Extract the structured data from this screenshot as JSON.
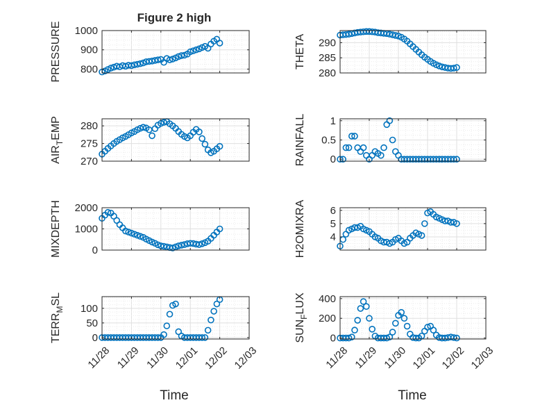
{
  "figure": {
    "title": "Figure 2 high",
    "marker_color": "#0072bd",
    "x_axis_label": "Time",
    "x_tick_labels": [
      "11/28",
      "11/29",
      "11/30",
      "12/01",
      "12/02",
      "12/03"
    ]
  },
  "chart_data": [
    {
      "type": "scatter",
      "name": "pressure",
      "ylabel": "PRESSURE",
      "ylim": [
        780,
        1000
      ],
      "yticks": [
        800,
        900,
        1000
      ],
      "x": [
        0.0,
        0.1,
        0.2,
        0.3,
        0.4,
        0.5,
        0.6,
        0.7,
        0.8,
        0.9,
        1.0,
        1.1,
        1.2,
        1.3,
        1.4,
        1.5,
        1.6,
        1.7,
        1.8,
        1.9,
        2.0,
        2.1,
        2.2,
        2.3,
        2.4,
        2.5,
        2.6,
        2.7,
        2.8,
        2.9,
        3.0,
        3.1,
        3.2,
        3.3,
        3.4,
        3.5,
        3.6,
        3.7,
        3.8,
        3.9,
        4.0
      ],
      "y": [
        785,
        790,
        798,
        805,
        810,
        815,
        812,
        818,
        815,
        820,
        818,
        822,
        825,
        828,
        832,
        838,
        840,
        842,
        845,
        848,
        850,
        835,
        855,
        848,
        852,
        858,
        865,
        870,
        872,
        878,
        890,
        895,
        900,
        905,
        912,
        918,
        908,
        930,
        945,
        955,
        935
      ],
      "grid": true,
      "legend": "none"
    },
    {
      "type": "scatter",
      "name": "theta",
      "ylabel": "THETA",
      "ylim": [
        280,
        294
      ],
      "yticks": [
        280,
        285,
        290
      ],
      "x": [
        0.0,
        0.1,
        0.2,
        0.3,
        0.4,
        0.5,
        0.6,
        0.7,
        0.8,
        0.9,
        1.0,
        1.1,
        1.2,
        1.3,
        1.4,
        1.5,
        1.6,
        1.7,
        1.8,
        1.9,
        2.0,
        2.1,
        2.2,
        2.3,
        2.4,
        2.5,
        2.6,
        2.7,
        2.8,
        2.9,
        3.0,
        3.1,
        3.2,
        3.3,
        3.4,
        3.5,
        3.6,
        3.7,
        3.8,
        3.9,
        4.0
      ],
      "y": [
        292.5,
        292.6,
        292.7,
        292.8,
        293,
        293.2,
        293.4,
        293.5,
        293.6,
        293.7,
        293.7,
        293.6,
        293.5,
        293.3,
        293.2,
        293.1,
        293,
        292.8,
        292.6,
        292.4,
        292.2,
        291.8,
        291.2,
        290.5,
        289.6,
        288.7,
        287.8,
        286.9,
        286,
        285.2,
        284.5,
        283.8,
        283.2,
        282.7,
        282.3,
        282,
        281.8,
        281.6,
        281.5,
        281.6,
        281.8
      ],
      "grid": true,
      "legend": "none"
    },
    {
      "type": "scatter",
      "name": "air_temp",
      "ylabel": "AIR_TEMP",
      "ylim": [
        270,
        282
      ],
      "yticks": [
        270,
        275,
        280
      ],
      "x": [
        0.0,
        0.1,
        0.2,
        0.3,
        0.4,
        0.5,
        0.6,
        0.7,
        0.8,
        0.9,
        1.0,
        1.1,
        1.2,
        1.3,
        1.4,
        1.5,
        1.6,
        1.7,
        1.8,
        1.9,
        2.0,
        2.1,
        2.2,
        2.3,
        2.4,
        2.5,
        2.6,
        2.7,
        2.8,
        2.9,
        3.0,
        3.1,
        3.2,
        3.3,
        3.4,
        3.5,
        3.6,
        3.7,
        3.8,
        3.9,
        4.0
      ],
      "y": [
        272,
        272.8,
        273.6,
        274.3,
        275,
        275.6,
        276.1,
        276.6,
        277,
        277.5,
        278,
        278.4,
        278.9,
        279.3,
        279.6,
        279.4,
        278.9,
        277.2,
        279.2,
        280.2,
        280.7,
        281,
        281.2,
        280.6,
        280,
        279.3,
        278.4,
        277.6,
        277,
        276.6,
        277.2,
        278.2,
        279,
        278.3,
        276.4,
        274.8,
        273.2,
        272.4,
        272.8,
        273.5,
        274.2
      ],
      "grid": true,
      "legend": "none"
    },
    {
      "type": "scatter",
      "name": "rainfall",
      "ylabel": "RAINFALL",
      "ylim": [
        -0.05,
        1.05
      ],
      "yticks": [
        0,
        0.5,
        1
      ],
      "x": [
        0.0,
        0.1,
        0.2,
        0.3,
        0.4,
        0.5,
        0.6,
        0.7,
        0.8,
        0.9,
        1.0,
        1.1,
        1.2,
        1.3,
        1.4,
        1.5,
        1.6,
        1.7,
        1.8,
        1.9,
        2.0,
        2.1,
        2.2,
        2.3,
        2.4,
        2.5,
        2.6,
        2.7,
        2.8,
        2.9,
        3.0,
        3.1,
        3.2,
        3.3,
        3.4,
        3.5,
        3.6,
        3.7,
        3.8,
        3.9,
        4.0
      ],
      "y": [
        0,
        0,
        0.3,
        0.3,
        0.6,
        0.6,
        0.3,
        0.2,
        0.3,
        0.1,
        0,
        0.1,
        0.2,
        0.15,
        0.1,
        0.3,
        0.9,
        1.0,
        0.5,
        0.2,
        0.1,
        0,
        0,
        0,
        0,
        0,
        0,
        0,
        0,
        0,
        0,
        0,
        0,
        0,
        0,
        0,
        0,
        0,
        0,
        0,
        0
      ],
      "grid": true,
      "legend": "none"
    },
    {
      "type": "scatter",
      "name": "mixdepth",
      "ylabel": "MIXDEPTH",
      "ylim": [
        0,
        2000
      ],
      "yticks": [
        0,
        1000,
        2000
      ],
      "x": [
        0.0,
        0.1,
        0.2,
        0.3,
        0.4,
        0.5,
        0.6,
        0.7,
        0.8,
        0.9,
        1.0,
        1.1,
        1.2,
        1.3,
        1.4,
        1.5,
        1.6,
        1.7,
        1.8,
        1.9,
        2.0,
        2.1,
        2.2,
        2.3,
        2.4,
        2.5,
        2.6,
        2.7,
        2.8,
        2.9,
        3.0,
        3.1,
        3.2,
        3.3,
        3.4,
        3.5,
        3.6,
        3.7,
        3.8,
        3.9,
        4.0
      ],
      "y": [
        1500,
        1650,
        1780,
        1750,
        1600,
        1400,
        1200,
        1050,
        900,
        850,
        800,
        750,
        700,
        650,
        600,
        520,
        450,
        380,
        320,
        250,
        200,
        180,
        150,
        120,
        100,
        150,
        200,
        230,
        260,
        300,
        320,
        310,
        280,
        260,
        300,
        350,
        420,
        550,
        700,
        850,
        1000
      ],
      "grid": true,
      "legend": "none"
    },
    {
      "type": "scatter",
      "name": "h2omixra",
      "ylabel": "H2OMIXRA",
      "ylim": [
        3,
        6.2
      ],
      "yticks": [
        4,
        5,
        6
      ],
      "x": [
        0.0,
        0.1,
        0.2,
        0.3,
        0.4,
        0.5,
        0.6,
        0.7,
        0.8,
        0.9,
        1.0,
        1.1,
        1.2,
        1.3,
        1.4,
        1.5,
        1.6,
        1.7,
        1.8,
        1.9,
        2.0,
        2.1,
        2.2,
        2.3,
        2.4,
        2.5,
        2.6,
        2.7,
        2.8,
        2.9,
        3.0,
        3.1,
        3.2,
        3.3,
        3.4,
        3.5,
        3.6,
        3.7,
        3.8,
        3.9,
        4.0
      ],
      "y": [
        3.3,
        3.8,
        4.2,
        4.5,
        4.6,
        4.7,
        4.7,
        4.8,
        4.6,
        4.5,
        4.4,
        4.2,
        4.0,
        3.9,
        3.7,
        3.6,
        3.6,
        3.5,
        3.6,
        3.8,
        3.9,
        3.7,
        3.5,
        3.6,
        3.9,
        4.1,
        4.3,
        4.2,
        4.1,
        5.0,
        5.8,
        5.9,
        5.7,
        5.5,
        5.4,
        5.3,
        5.2,
        5.2,
        5.1,
        5.1,
        5.0
      ],
      "grid": true,
      "legend": "none"
    },
    {
      "type": "scatter",
      "name": "terr_msl",
      "ylabel": "TERR_MSL",
      "ylim": [
        -5,
        140
      ],
      "yticks": [
        0,
        50,
        100
      ],
      "x": [
        0.0,
        0.1,
        0.2,
        0.3,
        0.4,
        0.5,
        0.6,
        0.7,
        0.8,
        0.9,
        1.0,
        1.1,
        1.2,
        1.3,
        1.4,
        1.5,
        1.6,
        1.7,
        1.8,
        1.9,
        2.0,
        2.1,
        2.2,
        2.3,
        2.4,
        2.5,
        2.6,
        2.7,
        2.8,
        2.9,
        3.0,
        3.1,
        3.2,
        3.3,
        3.4,
        3.5,
        3.6,
        3.7,
        3.8,
        3.9,
        4.0
      ],
      "y": [
        0,
        0,
        0,
        0,
        0,
        0,
        0,
        0,
        0,
        0,
        0,
        0,
        0,
        0,
        0,
        0,
        0,
        0,
        0,
        0,
        0,
        10,
        40,
        80,
        110,
        115,
        20,
        5,
        0,
        0,
        0,
        0,
        0,
        0,
        0,
        0,
        25,
        60,
        90,
        115,
        130
      ],
      "grid": true,
      "legend": "none"
    },
    {
      "type": "scatter",
      "name": "sun_flux",
      "ylabel": "SUN_FLUX",
      "ylim": [
        -10,
        420
      ],
      "yticks": [
        0,
        200,
        400
      ],
      "x": [
        0.0,
        0.1,
        0.2,
        0.3,
        0.4,
        0.5,
        0.6,
        0.7,
        0.8,
        0.9,
        1.0,
        1.1,
        1.2,
        1.3,
        1.4,
        1.5,
        1.6,
        1.7,
        1.8,
        1.9,
        2.0,
        2.1,
        2.2,
        2.3,
        2.4,
        2.5,
        2.6,
        2.7,
        2.8,
        2.9,
        3.0,
        3.1,
        3.2,
        3.3,
        3.4,
        3.5,
        3.6,
        3.7,
        3.8,
        3.9,
        4.0
      ],
      "y": [
        0,
        0,
        0,
        0,
        10,
        80,
        180,
        300,
        370,
        320,
        200,
        90,
        20,
        0,
        0,
        0,
        0,
        10,
        60,
        150,
        230,
        260,
        200,
        120,
        40,
        5,
        0,
        0,
        20,
        70,
        110,
        120,
        80,
        30,
        5,
        0,
        0,
        5,
        10,
        5,
        0
      ],
      "grid": true,
      "legend": "none"
    }
  ]
}
